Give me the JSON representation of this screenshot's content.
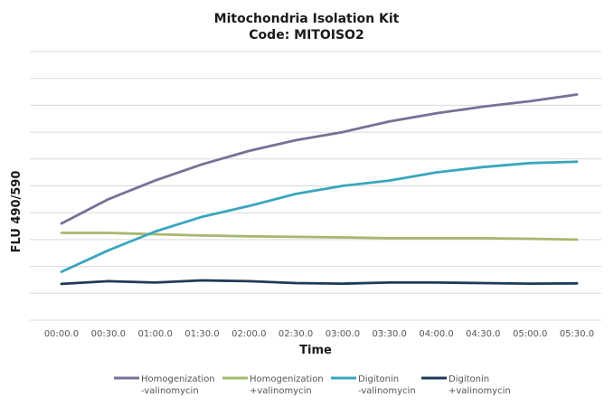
{
  "chart_data": {
    "type": "line",
    "title": "Mitochondria Isolation Kit",
    "subtitle": "Code: MITOISO2",
    "xlabel": "Time",
    "ylabel": "FLU 490/590",
    "x": [
      "00:00.0",
      "00:30.0",
      "01:00.0",
      "01:30.0",
      "02:00.0",
      "02:30.0",
      "03:00.0",
      "03:30.0",
      "04:00.0",
      "04:30.0",
      "05:00.0",
      "05:30.0"
    ],
    "ylim": [
      0,
      10
    ],
    "grid": true,
    "legend_position": "bottom",
    "series": [
      {
        "name": "Homogenization -valinomycin",
        "name_lines": [
          "Homogenization",
          "-valinomycin"
        ],
        "color": "#7a6f96",
        "values": [
          3.6,
          4.5,
          5.2,
          5.8,
          6.3,
          6.7,
          7.0,
          7.4,
          7.7,
          7.95,
          8.15,
          8.4
        ]
      },
      {
        "name": "Homogenization +valinomycin",
        "name_lines": [
          "Homogenization",
          "+valinomycin"
        ],
        "color": "#a6b86c",
        "values": [
          3.25,
          3.25,
          3.2,
          3.15,
          3.12,
          3.1,
          3.08,
          3.05,
          3.05,
          3.05,
          3.03,
          3.0
        ]
      },
      {
        "name": "Digitonin -valinomycin",
        "name_lines": [
          "Digitonin",
          "-valinomycin"
        ],
        "color": "#3aa6bd",
        "values": [
          1.8,
          2.6,
          3.3,
          3.85,
          4.25,
          4.7,
          5.0,
          5.2,
          5.5,
          5.7,
          5.85,
          5.9
        ]
      },
      {
        "name": "Digitonin +valinomycin",
        "name_lines": [
          "Digitonin",
          "+valinomycin"
        ],
        "color": "#1f3b57",
        "values": [
          1.35,
          1.45,
          1.4,
          1.48,
          1.45,
          1.38,
          1.36,
          1.4,
          1.4,
          1.38,
          1.36,
          1.37
        ]
      }
    ]
  }
}
